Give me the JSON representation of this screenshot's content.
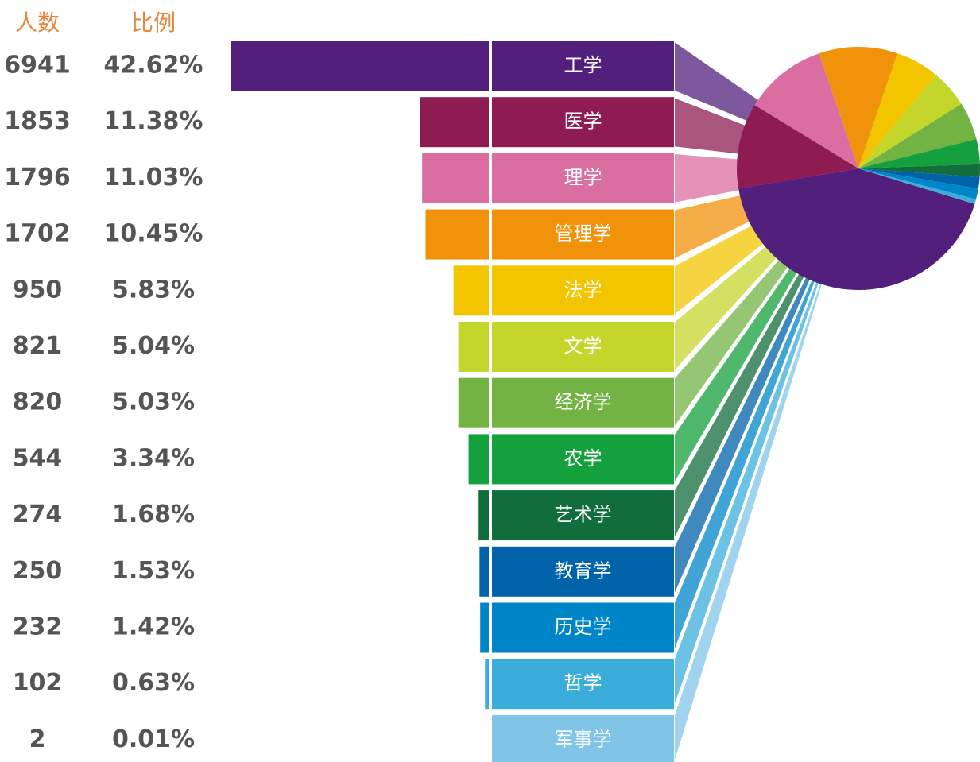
{
  "chart_data": {
    "type": "funnel-pie",
    "headers": [
      "人数",
      "比例"
    ],
    "categories": [
      "工学",
      "医学",
      "理学",
      "管理学",
      "法学",
      "文学",
      "经济学",
      "农学",
      "艺术学",
      "教育学",
      "历史学",
      "哲学",
      "军事学"
    ],
    "values": [
      6941,
      1853,
      1796,
      1702,
      950,
      821,
      820,
      544,
      274,
      250,
      232,
      102,
      2
    ],
    "percents": [
      42.62,
      11.38,
      11.03,
      10.45,
      5.83,
      5.04,
      5.03,
      3.34,
      1.68,
      1.53,
      1.42,
      0.63,
      0.01
    ],
    "percent_labels": [
      "42.62%",
      "11.38%",
      "11.03%",
      "10.45%",
      "5.83%",
      "5.04%",
      "5.03%",
      "3.34%",
      "1.68%",
      "1.53%",
      "1.42%",
      "0.63%",
      "0.01%"
    ],
    "colors": [
      "#52207c",
      "#8e1c52",
      "#db6ea0",
      "#f0920a",
      "#f2c500",
      "#c4d62c",
      "#72b344",
      "#14a03c",
      "#116d3c",
      "#0062a8",
      "#0086c8",
      "#3baddb",
      "#80c4e8"
    ]
  }
}
